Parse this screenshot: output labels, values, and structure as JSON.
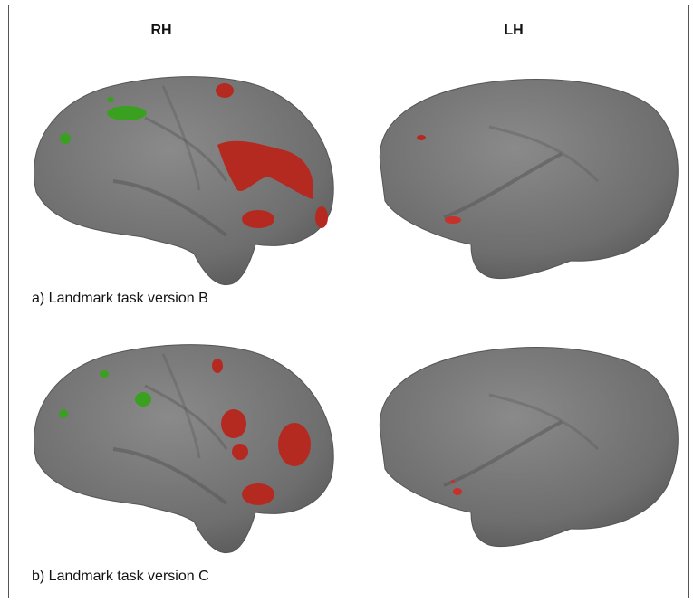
{
  "columns": [
    "RH",
    "LH"
  ],
  "panels": [
    {
      "caption": "a) Landmark task version B"
    },
    {
      "caption": "b) Landmark task version C"
    }
  ]
}
